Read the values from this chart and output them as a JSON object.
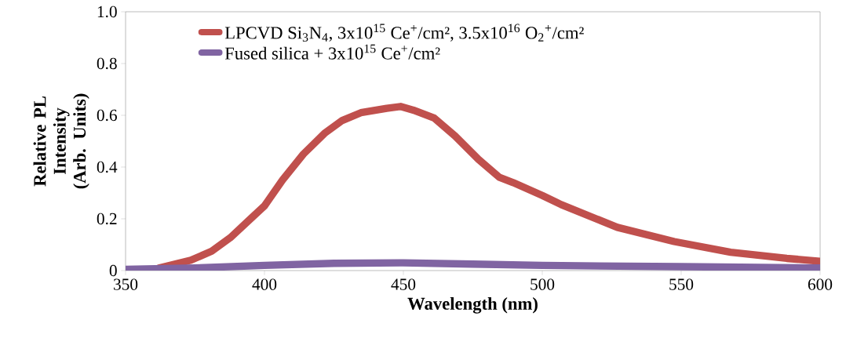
{
  "chart_data": {
    "type": "line",
    "xlabel": "Wavelength (nm)",
    "ylabel": "Relative PL Intensity (Arb. Units)",
    "xlim": [
      350,
      600
    ],
    "xticks": [
      350,
      400,
      450,
      500,
      550,
      600
    ],
    "ylim": [
      0,
      1
    ],
    "yticks": [
      0,
      0.2,
      0.4,
      0.6,
      0.8,
      {
        "value": 1,
        "label": "1.0"
      }
    ],
    "legend": "top left",
    "grid": false,
    "marker": "none",
    "line_style": "solid",
    "series": [
      {
        "name": "LPCVD Si$_{3}$N$_{4}$, 3x10$^{15}$ Ce$^{+}$/cm², 3.5x10$^{16}$ O$_{2}$$^{+}$/cm²",
        "color": "#c0504d",
        "x": [
          362,
          373.5,
          381,
          387.7,
          394,
          400,
          406.5,
          414,
          421.6,
          428,
          434.7,
          444,
          449,
          453.6,
          461,
          468.6,
          477,
          484.6,
          489.5,
          500,
          506.8,
          527,
          547.5,
          567.8,
          588,
          600
        ],
        "values": [
          0.01,
          0.04,
          0.075,
          0.127,
          0.19,
          0.25,
          0.35,
          0.45,
          0.53,
          0.58,
          0.61,
          0.627,
          0.634,
          0.62,
          0.59,
          0.52,
          0.43,
          0.36,
          0.34,
          0.29,
          0.255,
          0.167,
          0.112,
          0.071,
          0.047,
          0.036
        ]
      },
      {
        "name": "Fused silica + 3x10$^{15}$ Ce$^{+}$/cm²",
        "color": "#8064a2",
        "x": [
          350,
          375,
          400,
          425,
          450,
          475,
          500,
          550,
          600
        ],
        "values": [
          0.005,
          0.01,
          0.02,
          0.028,
          0.03,
          0.025,
          0.02,
          0.015,
          0.01
        ]
      }
    ]
  }
}
